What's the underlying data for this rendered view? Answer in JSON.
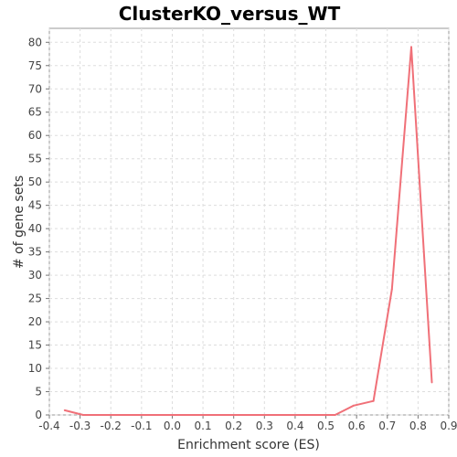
{
  "chart_data": {
    "type": "line",
    "title": "ClusterKO_versus_WT",
    "xlabel": "Enrichment score (ES)",
    "ylabel": "# of gene sets",
    "xlim": [
      -0.4,
      0.9
    ],
    "ylim": [
      0,
      83
    ],
    "xticks": [
      "-0.4",
      "-0.3",
      "-0.2",
      "-0.1",
      "0.0",
      "0.1",
      "0.2",
      "0.3",
      "0.4",
      "0.5",
      "0.6",
      "0.7",
      "0.8",
      "0.9"
    ],
    "yticks": [
      "0",
      "5",
      "10",
      "15",
      "20",
      "25",
      "30",
      "35",
      "40",
      "45",
      "50",
      "55",
      "60",
      "65",
      "70",
      "75",
      "80"
    ],
    "grid": true,
    "legend": "none",
    "color": "#f07078",
    "series": [
      {
        "x": [
          -0.35,
          -0.29,
          -0.23,
          -0.17,
          -0.11,
          -0.05,
          0.01,
          0.07,
          0.13,
          0.19,
          0.25,
          0.31,
          0.37,
          0.43,
          0.49,
          0.53,
          0.59,
          0.655,
          0.715,
          0.778,
          0.845
        ],
        "y": [
          1,
          0,
          0,
          0,
          0,
          0,
          0,
          0,
          0,
          0,
          0,
          0,
          0,
          0,
          0,
          0,
          2,
          3,
          27,
          79,
          7
        ]
      }
    ]
  }
}
